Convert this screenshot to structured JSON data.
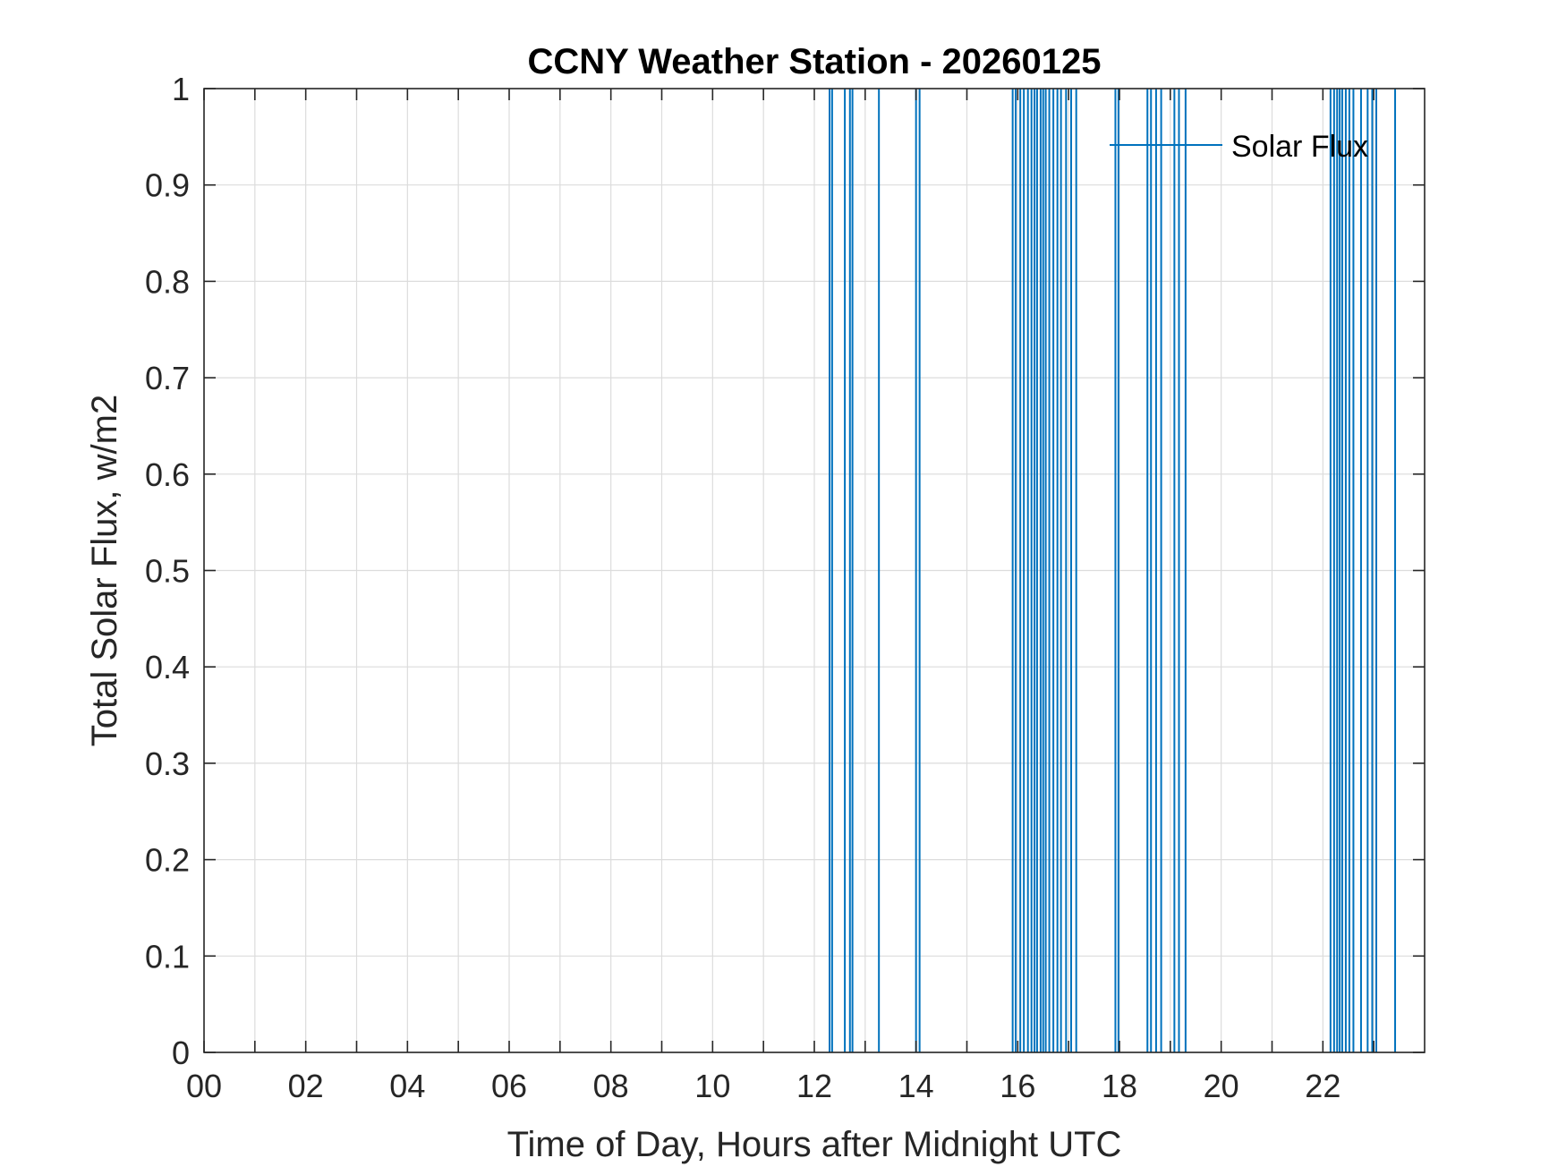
{
  "chart_data": {
    "type": "line",
    "title": "CCNY Weather Station - 20260125",
    "xlabel": "Time of Day, Hours after Midnight UTC",
    "ylabel": "Total Solar Flux, w/m2",
    "xlim": [
      0,
      24
    ],
    "ylim": [
      0,
      1
    ],
    "x_tick_values": [
      0,
      2,
      4,
      6,
      8,
      10,
      12,
      14,
      16,
      18,
      20,
      22
    ],
    "x_tick_labels": [
      "00",
      "02",
      "04",
      "06",
      "08",
      "10",
      "12",
      "14",
      "16",
      "18",
      "20",
      "22"
    ],
    "x_minor_ticks": [
      1,
      3,
      5,
      7,
      9,
      11,
      13,
      15,
      17,
      19,
      21,
      23
    ],
    "y_tick_values": [
      0,
      0.1,
      0.2,
      0.3,
      0.4,
      0.5,
      0.6,
      0.7,
      0.8,
      0.9,
      1
    ],
    "y_tick_labels": [
      "0",
      "0.1",
      "0.2",
      "0.3",
      "0.4",
      "0.5",
      "0.6",
      "0.7",
      "0.8",
      "0.9",
      "1"
    ],
    "grid": true,
    "legend_position": "top-right",
    "series": [
      {
        "name": "Solar Flux",
        "color": "#0072BD",
        "description": "Signal toggles between 0 and 1; spikes occur at the listed hours",
        "spike_hours": [
          12.3,
          12.35,
          12.6,
          12.7,
          12.75,
          13.27,
          14.0,
          14.07,
          15.9,
          15.96,
          16.05,
          16.12,
          16.2,
          16.27,
          16.33,
          16.38,
          16.45,
          16.5,
          16.55,
          16.62,
          16.7,
          16.78,
          16.85,
          16.95,
          17.05,
          17.15,
          17.92,
          17.98,
          18.55,
          18.62,
          18.72,
          18.82,
          19.08,
          19.17,
          19.3,
          22.15,
          22.22,
          22.28,
          22.33,
          22.38,
          22.45,
          22.52,
          22.6,
          22.75,
          22.88,
          22.97,
          23.05,
          23.42
        ]
      }
    ]
  }
}
